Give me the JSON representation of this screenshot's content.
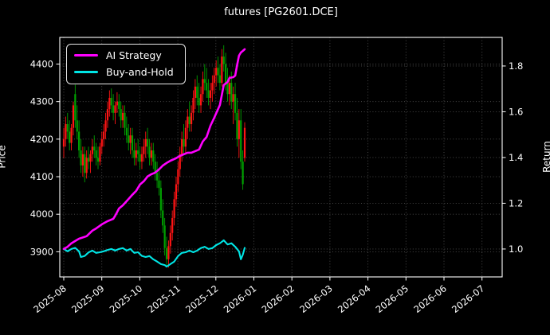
{
  "title": "futures [PG2601.DCE]",
  "legend": [
    {
      "label": "AI Strategy",
      "color": "#ff00ff"
    },
    {
      "label": "Buy-and-Hold",
      "color": "#00e5e5"
    }
  ],
  "axes": {
    "left": {
      "label": "Price",
      "ticks": [
        3900,
        4000,
        4100,
        4200,
        4300,
        4400
      ],
      "range": [
        3833,
        4471
      ]
    },
    "right": {
      "label": "Return",
      "ticks": [
        "1.0",
        "1.2",
        "1.4",
        "1.6",
        "1.8"
      ],
      "range": [
        0.878,
        1.925
      ]
    },
    "x": {
      "ticks": [
        "2025-08",
        "2025-09",
        "2025-10",
        "2025-11",
        "2025-12",
        "2026-01",
        "2026-02",
        "2026-03",
        "2026-04",
        "2026-05",
        "2026-06",
        "2026-07"
      ]
    }
  },
  "chart_data": {
    "type": "candlestick+line",
    "title": "futures [PG2601.DCE]",
    "xlabel": "",
    "ylabel_left": "Price",
    "ylabel_right": "Return",
    "grid": true,
    "legend_position": "upper-left",
    "background": "#000000",
    "text_color": "#ffffff",
    "grid_color": "#5e5e5e",
    "candles": {
      "up_color": "#ff1414",
      "down_color": "#00a000",
      "columns": [
        "date",
        "open",
        "high",
        "low",
        "close"
      ],
      "data": [
        [
          "2025-08-01",
          4180,
          4230,
          4150,
          4200
        ],
        [
          "2025-08-04",
          4200,
          4260,
          4180,
          4240
        ],
        [
          "2025-08-05",
          4240,
          4270,
          4200,
          4220
        ],
        [
          "2025-08-06",
          4220,
          4250,
          4170,
          4190
        ],
        [
          "2025-08-07",
          4190,
          4240,
          4170,
          4230
        ],
        [
          "2025-08-08",
          4230,
          4300,
          4210,
          4290
        ],
        [
          "2025-08-11",
          4320,
          4345,
          4230,
          4250
        ],
        [
          "2025-08-12",
          4250,
          4290,
          4200,
          4220
        ],
        [
          "2025-08-13",
          4220,
          4250,
          4150,
          4170
        ],
        [
          "2025-08-14",
          4170,
          4200,
          4110,
          4130
        ],
        [
          "2025-08-15",
          4130,
          4180,
          4100,
          4160
        ],
        [
          "2025-08-18",
          4160,
          4180,
          4085,
          4110
        ],
        [
          "2025-08-19",
          4110,
          4170,
          4095,
          4150
        ],
        [
          "2025-08-20",
          4150,
          4180,
          4120,
          4140
        ],
        [
          "2025-08-21",
          4140,
          4170,
          4110,
          4160
        ],
        [
          "2025-08-22",
          4160,
          4200,
          4140,
          4180
        ],
        [
          "2025-08-25",
          4180,
          4210,
          4150,
          4170
        ],
        [
          "2025-08-26",
          4170,
          4190,
          4130,
          4150
        ],
        [
          "2025-08-27",
          4150,
          4180,
          4120,
          4140
        ],
        [
          "2025-08-28",
          4140,
          4190,
          4130,
          4180
        ],
        [
          "2025-08-29",
          4180,
          4220,
          4160,
          4200
        ],
        [
          "2025-09-01",
          4200,
          4240,
          4180,
          4220
        ],
        [
          "2025-09-02",
          4220,
          4270,
          4200,
          4250
        ],
        [
          "2025-09-03",
          4250,
          4300,
          4230,
          4280
        ],
        [
          "2025-09-04",
          4280,
          4330,
          4260,
          4310
        ],
        [
          "2025-09-05",
          4310,
          4335,
          4270,
          4290
        ],
        [
          "2025-09-08",
          4290,
          4320,
          4250,
          4270
        ],
        [
          "2025-09-09",
          4270,
          4300,
          4240,
          4290
        ],
        [
          "2025-09-10",
          4290,
          4325,
          4270,
          4300
        ],
        [
          "2025-09-11",
          4300,
          4320,
          4260,
          4280
        ],
        [
          "2025-09-12",
          4280,
          4300,
          4230,
          4250
        ],
        [
          "2025-09-15",
          4250,
          4290,
          4230,
          4270
        ],
        [
          "2025-09-16",
          4270,
          4290,
          4210,
          4230
        ],
        [
          "2025-09-17",
          4230,
          4260,
          4190,
          4210
        ],
        [
          "2025-09-18",
          4210,
          4240,
          4170,
          4190
        ],
        [
          "2025-09-19",
          4190,
          4230,
          4160,
          4210
        ],
        [
          "2025-09-22",
          4210,
          4230,
          4150,
          4170
        ],
        [
          "2025-09-23",
          4170,
          4200,
          4130,
          4150
        ],
        [
          "2025-09-24",
          4150,
          4190,
          4130,
          4170
        ],
        [
          "2025-09-25",
          4170,
          4200,
          4140,
          4160
        ],
        [
          "2025-09-26",
          4160,
          4180,
          4120,
          4140
        ],
        [
          "2025-09-29",
          4140,
          4180,
          4120,
          4160
        ],
        [
          "2025-09-30",
          4160,
          4200,
          4140,
          4180
        ],
        [
          "2025-10-08",
          4180,
          4220,
          4150,
          4200
        ],
        [
          "2025-10-09",
          4200,
          4230,
          4160,
          4180
        ],
        [
          "2025-10-10",
          4180,
          4200,
          4130,
          4150
        ],
        [
          "2025-10-13",
          4150,
          4190,
          4130,
          4170
        ],
        [
          "2025-10-14",
          4170,
          4190,
          4120,
          4140
        ],
        [
          "2025-10-15",
          4140,
          4160,
          4090,
          4110
        ],
        [
          "2025-10-16",
          4110,
          4140,
          4070,
          4090
        ],
        [
          "2025-10-17",
          4090,
          4120,
          4050,
          4070
        ],
        [
          "2025-10-20",
          4070,
          4090,
          3990,
          4010
        ],
        [
          "2025-10-21",
          4010,
          4040,
          3950,
          3970
        ],
        [
          "2025-10-22",
          3970,
          3990,
          3890,
          3910
        ],
        [
          "2025-10-23",
          3910,
          3940,
          3862,
          3880
        ],
        [
          "2025-10-24",
          3880,
          3930,
          3858,
          3915
        ],
        [
          "2025-10-27",
          3915,
          3970,
          3895,
          3950
        ],
        [
          "2025-10-28",
          3950,
          4010,
          3930,
          3990
        ],
        [
          "2025-10-29",
          3990,
          4060,
          3970,
          4040
        ],
        [
          "2025-10-30",
          4040,
          4100,
          4020,
          4080
        ],
        [
          "2025-10-31",
          4080,
          4140,
          4060,
          4120
        ],
        [
          "2025-11-03",
          4120,
          4180,
          4100,
          4160
        ],
        [
          "2025-11-04",
          4160,
          4220,
          4140,
          4200
        ],
        [
          "2025-11-05",
          4200,
          4240,
          4160,
          4180
        ],
        [
          "2025-11-06",
          4180,
          4250,
          4160,
          4230
        ],
        [
          "2025-11-07",
          4230,
          4280,
          4200,
          4260
        ],
        [
          "2025-11-10",
          4260,
          4300,
          4220,
          4240
        ],
        [
          "2025-11-11",
          4240,
          4290,
          4220,
          4270
        ],
        [
          "2025-11-12",
          4270,
          4330,
          4250,
          4310
        ],
        [
          "2025-11-13",
          4310,
          4360,
          4280,
          4340
        ],
        [
          "2025-11-14",
          4340,
          4370,
          4290,
          4310
        ],
        [
          "2025-11-17",
          4310,
          4350,
          4270,
          4290
        ],
        [
          "2025-11-18",
          4290,
          4340,
          4270,
          4320
        ],
        [
          "2025-11-19",
          4320,
          4380,
          4300,
          4360
        ],
        [
          "2025-11-20",
          4360,
          4400,
          4330,
          4350
        ],
        [
          "2025-11-21",
          4350,
          4390,
          4310,
          4330
        ],
        [
          "2025-11-24",
          4330,
          4360,
          4290,
          4310
        ],
        [
          "2025-11-25",
          4310,
          4350,
          4280,
          4330
        ],
        [
          "2025-11-26",
          4330,
          4370,
          4300,
          4350
        ],
        [
          "2025-11-27",
          4350,
          4390,
          4320,
          4370
        ],
        [
          "2025-11-28",
          4370,
          4410,
          4340,
          4390
        ],
        [
          "2025-12-01",
          4390,
          4420,
          4350,
          4370
        ],
        [
          "2025-12-02",
          4370,
          4400,
          4330,
          4350
        ],
        [
          "2025-12-03",
          4350,
          4440,
          4340,
          4420
        ],
        [
          "2025-12-04",
          4420,
          4450,
          4380,
          4400
        ],
        [
          "2025-12-05",
          4400,
          4430,
          4330,
          4350
        ],
        [
          "2025-12-08",
          4350,
          4390,
          4300,
          4320
        ],
        [
          "2025-12-09",
          4320,
          4370,
          4290,
          4350
        ],
        [
          "2025-12-10",
          4350,
          4380,
          4280,
          4300
        ],
        [
          "2025-12-11",
          4300,
          4340,
          4240,
          4320
        ],
        [
          "2025-12-12",
          4320,
          4350,
          4250,
          4270
        ],
        [
          "2025-12-15",
          4270,
          4310,
          4180,
          4200
        ],
        [
          "2025-12-16",
          4200,
          4280,
          4150,
          4250
        ],
        [
          "2025-12-17",
          4250,
          4280,
          4120,
          4140
        ],
        [
          "2025-12-18",
          4140,
          4170,
          4065,
          4080
        ],
        [
          "2025-12-19",
          4150,
          4245,
          4140,
          4230
        ]
      ]
    },
    "series": [
      {
        "name": "AI Strategy",
        "color": "#ff00ff",
        "axis": "return",
        "width": 2.6,
        "points": [
          [
            0,
            1.0
          ],
          [
            2,
            1.01
          ],
          [
            4,
            1.025
          ],
          [
            6,
            1.035
          ],
          [
            8,
            1.045
          ],
          [
            12,
            1.056
          ],
          [
            15,
            1.08
          ],
          [
            17,
            1.09
          ],
          [
            20,
            1.108
          ],
          [
            23,
            1.122
          ],
          [
            26,
            1.132
          ],
          [
            27,
            1.145
          ],
          [
            29,
            1.177
          ],
          [
            31,
            1.191
          ],
          [
            33,
            1.209
          ],
          [
            36,
            1.237
          ],
          [
            38,
            1.254
          ],
          [
            40,
            1.282
          ],
          [
            42,
            1.296
          ],
          [
            44,
            1.317
          ],
          [
            46,
            1.327
          ],
          [
            48,
            1.334
          ],
          [
            50,
            1.348
          ],
          [
            52,
            1.365
          ],
          [
            54,
            1.376
          ],
          [
            56,
            1.386
          ],
          [
            59,
            1.397
          ],
          [
            61,
            1.407
          ],
          [
            63,
            1.414
          ],
          [
            65,
            1.421
          ],
          [
            67,
            1.421
          ],
          [
            69,
            1.428
          ],
          [
            71,
            1.435
          ],
          [
            73,
            1.47
          ],
          [
            75,
            1.49
          ],
          [
            77,
            1.539
          ],
          [
            79,
            1.574
          ],
          [
            82,
            1.63
          ],
          [
            84,
            1.717
          ],
          [
            86,
            1.73
          ],
          [
            87,
            1.748
          ],
          [
            89,
            1.751
          ],
          [
            90,
            1.758
          ],
          [
            91,
            1.803
          ],
          [
            92,
            1.845
          ],
          [
            93,
            1.859
          ],
          [
            94,
            1.866
          ],
          [
            95,
            1.873
          ]
        ]
      },
      {
        "name": "Buy-and-Hold",
        "color": "#00e5e5",
        "axis": "return",
        "width": 2.1,
        "points": [
          [
            0,
            1.0
          ],
          [
            2,
            0.99
          ],
          [
            4,
            1.0
          ],
          [
            6,
            1.005
          ],
          [
            8,
            0.99
          ],
          [
            9,
            0.965
          ],
          [
            11,
            0.97
          ],
          [
            13,
            0.985
          ],
          [
            15,
            0.993
          ],
          [
            17,
            0.983
          ],
          [
            19,
            0.986
          ],
          [
            21,
            0.99
          ],
          [
            23,
            0.996
          ],
          [
            25,
            1.0
          ],
          [
            27,
            0.993
          ],
          [
            29,
            1.0
          ],
          [
            31,
            1.004
          ],
          [
            33,
            0.993
          ],
          [
            35,
            1.0
          ],
          [
            37,
            0.983
          ],
          [
            39,
            0.986
          ],
          [
            41,
            0.97
          ],
          [
            43,
            0.965
          ],
          [
            45,
            0.969
          ],
          [
            47,
            0.955
          ],
          [
            49,
            0.945
          ],
          [
            51,
            0.934
          ],
          [
            53,
            0.93
          ],
          [
            54,
            0.923
          ],
          [
            56,
            0.934
          ],
          [
            58,
            0.945
          ],
          [
            60,
            0.969
          ],
          [
            62,
            0.983
          ],
          [
            64,
            0.986
          ],
          [
            66,
            0.993
          ],
          [
            68,
            0.986
          ],
          [
            70,
            0.993
          ],
          [
            72,
            1.004
          ],
          [
            74,
            1.01
          ],
          [
            76,
            1.0
          ],
          [
            78,
            1.004
          ],
          [
            80,
            1.017
          ],
          [
            82,
            1.025
          ],
          [
            84,
            1.038
          ],
          [
            86,
            1.02
          ],
          [
            88,
            1.025
          ],
          [
            90,
            1.01
          ],
          [
            91,
            1.0
          ],
          [
            92,
            0.99
          ],
          [
            93,
            0.955
          ],
          [
            94,
            0.975
          ],
          [
            95,
            1.005
          ]
        ]
      }
    ]
  }
}
